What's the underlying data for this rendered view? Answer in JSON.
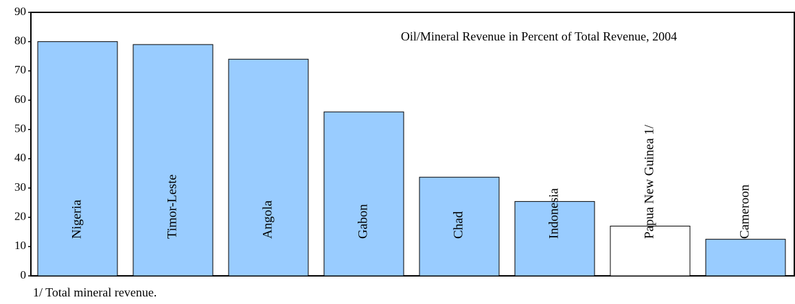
{
  "chart_data": {
    "type": "bar",
    "title": "Oil/Mineral Revenue in Percent of Total Revenue, 2004",
    "categories": [
      "Nigeria",
      "Timor-Leste",
      "Angola",
      "Gabon",
      "Chad",
      "Indonesia",
      "Papua New Guinea 1/",
      "Cameroon"
    ],
    "values": [
      80,
      79,
      74,
      56,
      33.7,
      25.4,
      17,
      12.5
    ],
    "colors": [
      "#99ccff",
      "#99ccff",
      "#99ccff",
      "#99ccff",
      "#99ccff",
      "#99ccff",
      "#ffffff",
      "#99ccff"
    ],
    "ylim": [
      0,
      90
    ],
    "yticks": [
      0,
      10,
      20,
      30,
      40,
      50,
      60,
      70,
      80,
      90
    ],
    "grid": false,
    "footnote": "1/ Total mineral revenue."
  }
}
